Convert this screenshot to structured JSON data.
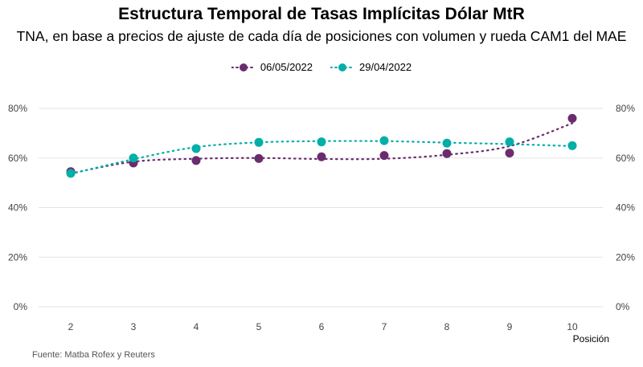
{
  "chart_data": {
    "type": "line",
    "title": "Estructura Temporal de Tasas Implícitas Dólar MtR",
    "subtitle": "TNA, en base a precios de ajuste de cada día de posiciones con volumen y rueda CAM1 del MAE",
    "xlabel": "Posición",
    "ylabel": "",
    "x": [
      2,
      3,
      4,
      5,
      6,
      7,
      8,
      9,
      10
    ],
    "ylim": [
      0,
      80
    ],
    "yticks": [
      "0%",
      "20%",
      "40%",
      "60%",
      "80%"
    ],
    "ytick_values": [
      0,
      20,
      40,
      60,
      80
    ],
    "grid": true,
    "legend_position": "top-center",
    "series": [
      {
        "name": "06/05/2022",
        "color": "#6b2c6e",
        "values": [
          54.5,
          58.0,
          59.0,
          59.8,
          60.5,
          61.0,
          61.8,
          62.0,
          76.0
        ],
        "trend": [
          53.8,
          58.5,
          59.7,
          60.0,
          59.6,
          59.7,
          61.3,
          64.8,
          74.0
        ]
      },
      {
        "name": "29/04/2022",
        "color": "#00afa8",
        "values": [
          53.8,
          60.0,
          63.8,
          66.3,
          66.5,
          67.0,
          66.0,
          66.5,
          65.0
        ],
        "trend": [
          53.6,
          59.5,
          64.4,
          66.3,
          66.8,
          66.8,
          66.2,
          65.6,
          64.8
        ]
      }
    ],
    "source": "Fuente: Matba Rofex y Reuters"
  }
}
